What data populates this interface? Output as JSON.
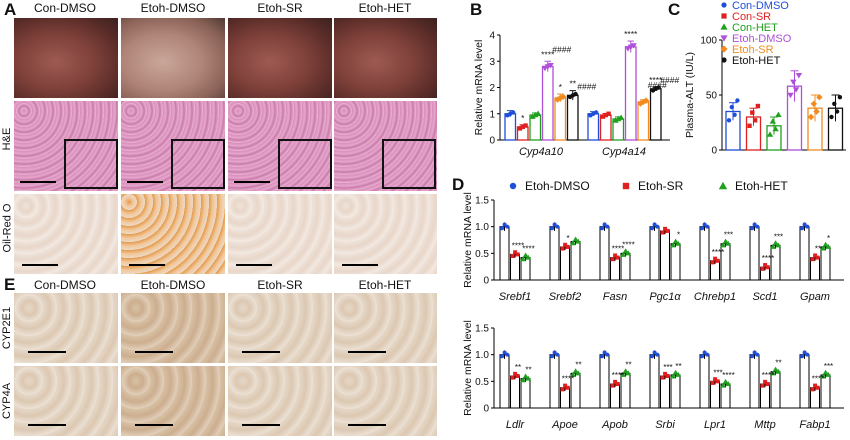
{
  "panels": {
    "A": {
      "label": "A",
      "columns": [
        "Con-DMSO",
        "Etoh-DMSO",
        "Etoh-SR",
        "Etoh-HET"
      ],
      "rows": [
        "H&E",
        "Oil-Red O"
      ]
    },
    "B": {
      "label": "B"
    },
    "C": {
      "label": "C"
    },
    "D": {
      "label": "D"
    },
    "E": {
      "label": "E",
      "columns": [
        "Con-DMSO",
        "Etoh-DMSO",
        "Etoh-SR",
        "Etoh-HET"
      ],
      "rows": [
        "CYP2E1",
        "CYP4A"
      ]
    }
  },
  "legend_C": [
    {
      "name": "Con-DMSO",
      "color": "#1f4fd8",
      "marker": "circle"
    },
    {
      "name": "Con-SR",
      "color": "#e02020",
      "marker": "square"
    },
    {
      "name": "Con-HET",
      "color": "#1fa01f",
      "marker": "triangle-up"
    },
    {
      "name": "Etoh-DMSO",
      "color": "#b04fd8",
      "marker": "triangle-down"
    },
    {
      "name": "Etoh-SR",
      "color": "#f08c1f",
      "marker": "diamond"
    },
    {
      "name": "Etoh-HET",
      "color": "#111111",
      "marker": "circle"
    }
  ],
  "legend_D": [
    {
      "name": "Etoh-DMSO",
      "color": "#1f4fd8",
      "marker": "circle"
    },
    {
      "name": "Etoh-SR",
      "color": "#e02020",
      "marker": "square"
    },
    {
      "name": "Etoh-HET",
      "color": "#1fa01f",
      "marker": "triangle-up"
    }
  ],
  "chart_data": [
    {
      "id": "B",
      "type": "bar",
      "ylabel": "Relative mRNA level",
      "ylim": [
        0,
        4
      ],
      "yticks": [
        0,
        1,
        2,
        3,
        4
      ],
      "categories": [
        "Cyp4a10",
        "Cyp4a14"
      ],
      "series": [
        {
          "name": "Con-DMSO",
          "color": "#1f4fd8",
          "values": [
            1.0,
            1.0
          ],
          "err": [
            0.12,
            0.08
          ]
        },
        {
          "name": "Con-SR",
          "color": "#e02020",
          "values": [
            0.5,
            0.95
          ],
          "err": [
            0.08,
            0.06
          ]
        },
        {
          "name": "Con-HET",
          "color": "#1fa01f",
          "values": [
            0.95,
            0.8
          ],
          "err": [
            0.08,
            0.08
          ]
        },
        {
          "name": "Etoh-DMSO",
          "color": "#b04fd8",
          "values": [
            2.8,
            3.55
          ],
          "err": [
            0.2,
            0.22
          ]
        },
        {
          "name": "Etoh-SR",
          "color": "#f08c1f",
          "values": [
            1.6,
            1.45
          ],
          "err": [
            0.15,
            0.08
          ]
        },
        {
          "name": "Etoh-HET",
          "color": "#111111",
          "values": [
            1.7,
            1.95
          ],
          "err": [
            0.18,
            0.06
          ]
        }
      ],
      "annotations": [
        {
          "cat": 0,
          "series": 1,
          "text": "*"
        },
        {
          "cat": 0,
          "series": 3,
          "text": "****"
        },
        {
          "cat": 0,
          "series": 3,
          "text": "####",
          "row": 2
        },
        {
          "cat": 0,
          "series": 4,
          "text": "*"
        },
        {
          "cat": 0,
          "series": 5,
          "text": "**"
        },
        {
          "cat": 0,
          "series": 5,
          "text": "####",
          "row": 1
        },
        {
          "cat": 1,
          "series": 3,
          "text": "****"
        },
        {
          "cat": 1,
          "series": 4,
          "text": "####",
          "row": 2
        },
        {
          "cat": 1,
          "series": 5,
          "text": "####",
          "row": 1
        },
        {
          "cat": 1,
          "series": 5,
          "text": "****"
        }
      ]
    },
    {
      "id": "C",
      "type": "bar",
      "ylabel": "Plasma-ALT (IU/L)",
      "ylim": [
        0,
        100
      ],
      "yticks": [
        0,
        50,
        100
      ],
      "categories": [
        "Con-DMSO",
        "Con-SR",
        "Con-HET",
        "Etoh-DMSO",
        "Etoh-SR",
        "Etoh-HET"
      ],
      "values": [
        35,
        30,
        22,
        58,
        38,
        38
      ],
      "err": [
        8,
        8,
        8,
        14,
        12,
        12
      ]
    },
    {
      "id": "D1",
      "type": "bar",
      "ylabel": "Relative mRNA level",
      "ylim": [
        0,
        1.5
      ],
      "yticks": [
        0,
        0.5,
        1.0,
        1.5
      ],
      "yticklabels": [
        "0",
        "0.5",
        "1.0",
        "1.5"
      ],
      "categories": [
        "Srebf1",
        "Srebf2",
        "Fasn",
        "Pgc1α",
        "Chrebp1",
        "Scd1",
        "Gpam"
      ],
      "series": [
        {
          "name": "Etoh-DMSO",
          "values": [
            1.0,
            1.0,
            1.0,
            1.0,
            1.0,
            1.0,
            1.0
          ]
        },
        {
          "name": "Etoh-SR",
          "values": [
            0.48,
            0.62,
            0.42,
            0.92,
            0.36,
            0.24,
            0.42
          ]
        },
        {
          "name": "Etoh-HET",
          "values": [
            0.42,
            0.72,
            0.5,
            0.68,
            0.68,
            0.65,
            0.62
          ]
        }
      ],
      "sig": [
        [
          "****",
          "****"
        ],
        [
          "*",
          ""
        ],
        [
          "****",
          "****"
        ],
        [
          "",
          "*"
        ],
        [
          "****",
          "***"
        ],
        [
          "****",
          "***"
        ],
        [
          "**",
          "*"
        ]
      ]
    },
    {
      "id": "D2",
      "type": "bar",
      "ylabel": "Relative mRNA level",
      "ylim": [
        0,
        1.5
      ],
      "yticks": [
        0,
        0.5,
        1.0,
        1.5
      ],
      "yticklabels": [
        "0",
        "0.5",
        "1.0",
        "1.5"
      ],
      "categories": [
        "Ldlr",
        "Apoe",
        "Apob",
        "Srbi",
        "Lpr1",
        "Mttp",
        "Fabp1"
      ],
      "series": [
        {
          "name": "Etoh-DMSO",
          "values": [
            1.0,
            1.0,
            1.0,
            1.0,
            1.0,
            1.0,
            1.0
          ]
        },
        {
          "name": "Etoh-SR",
          "values": [
            0.6,
            0.38,
            0.45,
            0.6,
            0.5,
            0.45,
            0.38
          ]
        },
        {
          "name": "Etoh-HET",
          "values": [
            0.55,
            0.65,
            0.65,
            0.62,
            0.45,
            0.68,
            0.62
          ]
        }
      ],
      "sig": [
        [
          "**",
          "**"
        ],
        [
          "****",
          "**"
        ],
        [
          "****",
          "**"
        ],
        [
          "***",
          "**"
        ],
        [
          "***",
          "****"
        ],
        [
          "****",
          "**"
        ],
        [
          "****",
          "***"
        ]
      ]
    }
  ]
}
